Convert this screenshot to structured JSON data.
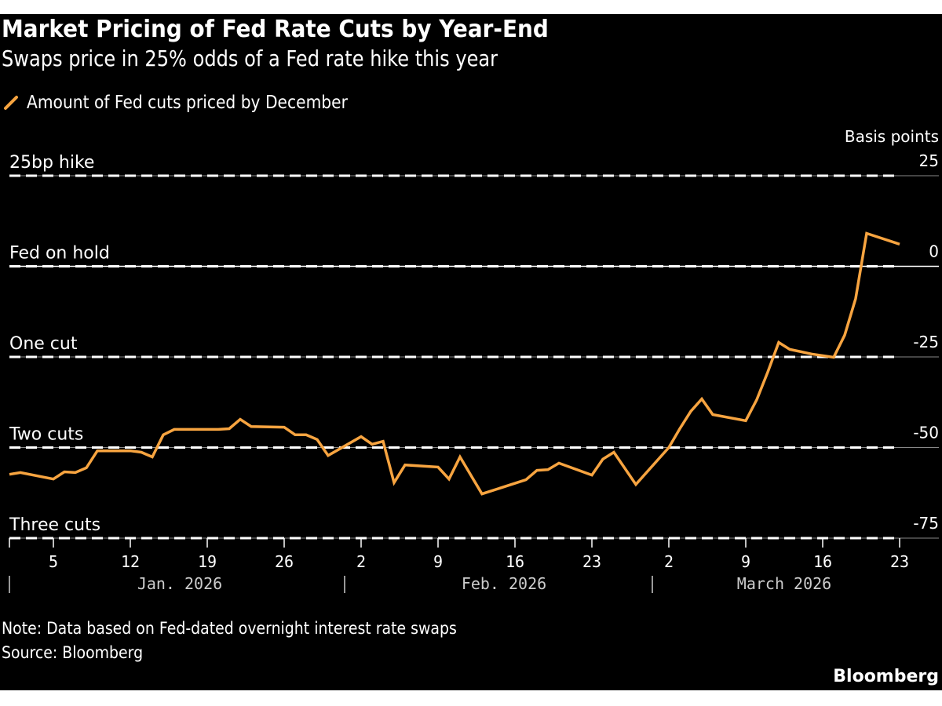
{
  "title": "Market Pricing of Fed Rate Cuts by Year-End",
  "subtitle": "Swaps price in 25% odds of a Fed rate hike this year",
  "legend": {
    "label": "Amount of Fed cuts priced by December",
    "icon": "slash-line-icon"
  },
  "note": "Note: Data based on Fed-dated overnight interest rate swaps",
  "source": "Source: Bloomberg",
  "brand": "Bloomberg",
  "colors": {
    "series": "#f7a440",
    "background": "#000000",
    "text": "#ffffff",
    "grid": "#888888",
    "zero_line": "#ffffff",
    "reference_dash": "#ffffff"
  },
  "chart_data": {
    "type": "line",
    "title": "Market Pricing of Fed Rate Cuts by Year-End",
    "subtitle": "Swaps price in 25% odds of a Fed rate hike this year",
    "xlabel": "",
    "ylabel": "Basis points",
    "ylim": [
      -75,
      25
    ],
    "yticks": [
      25,
      0,
      -25,
      -50,
      -75
    ],
    "ytick_labels": [
      "25",
      "0",
      "-25",
      "-50",
      "-75"
    ],
    "y_axis_position": "right",
    "grid": true,
    "legend_position": "top-left",
    "reference_lines": [
      {
        "value": 25,
        "label": "25bp hike"
      },
      {
        "value": 0,
        "label": "Fed on hold"
      },
      {
        "value": -25,
        "label": "One cut"
      },
      {
        "value": -50,
        "label": "Two cuts"
      },
      {
        "value": -75,
        "label": "Three cuts"
      }
    ],
    "xlim_days": [
      0,
      82
    ],
    "x_ticks": [
      {
        "day": 4,
        "label": "5"
      },
      {
        "day": 11,
        "label": "12"
      },
      {
        "day": 18,
        "label": "19"
      },
      {
        "day": 25,
        "label": "26"
      },
      {
        "day": 32,
        "label": "2"
      },
      {
        "day": 39,
        "label": "9"
      },
      {
        "day": 46,
        "label": "16"
      },
      {
        "day": 53,
        "label": "23"
      },
      {
        "day": 60,
        "label": "2"
      },
      {
        "day": 67,
        "label": "9"
      },
      {
        "day": 74,
        "label": "16"
      },
      {
        "day": 81,
        "label": "23"
      }
    ],
    "months": [
      {
        "start_day": 0,
        "label": "Jan. 2026"
      },
      {
        "start_day": 31,
        "label": "Feb. 2026"
      },
      {
        "start_day": 59,
        "label": "March 2026"
      }
    ],
    "series": [
      {
        "name": "Amount of Fed cuts priced by December",
        "points": [
          {
            "date": "2026-01-01",
            "day": 0,
            "value": -57.4
          },
          {
            "date": "2026-01-02",
            "day": 1,
            "value": -56.9
          },
          {
            "date": "2026-01-05",
            "day": 4,
            "value": -58.7
          },
          {
            "date": "2026-01-06",
            "day": 5,
            "value": -56.7
          },
          {
            "date": "2026-01-07",
            "day": 6,
            "value": -56.9
          },
          {
            "date": "2026-01-08",
            "day": 7,
            "value": -55.6
          },
          {
            "date": "2026-01-09",
            "day": 8,
            "value": -50.9
          },
          {
            "date": "2026-01-12",
            "day": 11,
            "value": -50.9
          },
          {
            "date": "2026-01-13",
            "day": 12,
            "value": -51.3
          },
          {
            "date": "2026-01-14",
            "day": 13,
            "value": -52.6
          },
          {
            "date": "2026-01-15",
            "day": 14,
            "value": -46.5
          },
          {
            "date": "2026-01-16",
            "day": 15,
            "value": -45.0
          },
          {
            "date": "2026-01-20",
            "day": 19,
            "value": -45.0
          },
          {
            "date": "2026-01-21",
            "day": 20,
            "value": -44.8
          },
          {
            "date": "2026-01-22",
            "day": 21,
            "value": -42.2
          },
          {
            "date": "2026-01-23",
            "day": 22,
            "value": -44.2
          },
          {
            "date": "2026-01-26",
            "day": 25,
            "value": -44.4
          },
          {
            "date": "2026-01-27",
            "day": 26,
            "value": -46.5
          },
          {
            "date": "2026-01-28",
            "day": 27,
            "value": -46.5
          },
          {
            "date": "2026-01-29",
            "day": 28,
            "value": -47.8
          },
          {
            "date": "2026-01-30",
            "day": 29,
            "value": -52.2
          },
          {
            "date": "2026-02-02",
            "day": 32,
            "value": -47.0
          },
          {
            "date": "2026-02-03",
            "day": 33,
            "value": -49.1
          },
          {
            "date": "2026-02-04",
            "day": 34,
            "value": -48.3
          },
          {
            "date": "2026-02-05",
            "day": 35,
            "value": -59.7
          },
          {
            "date": "2026-02-06",
            "day": 36,
            "value": -54.8
          },
          {
            "date": "2026-02-09",
            "day": 39,
            "value": -55.4
          },
          {
            "date": "2026-02-10",
            "day": 40,
            "value": -58.7
          },
          {
            "date": "2026-02-11",
            "day": 41,
            "value": -52.6
          },
          {
            "date": "2026-02-13",
            "day": 43,
            "value": -62.8
          },
          {
            "date": "2026-02-17",
            "day": 47,
            "value": -58.9
          },
          {
            "date": "2026-02-18",
            "day": 48,
            "value": -56.3
          },
          {
            "date": "2026-02-19",
            "day": 49,
            "value": -56.1
          },
          {
            "date": "2026-02-20",
            "day": 50,
            "value": -54.3
          },
          {
            "date": "2026-02-23",
            "day": 53,
            "value": -57.6
          },
          {
            "date": "2026-02-24",
            "day": 54,
            "value": -53.2
          },
          {
            "date": "2026-02-25",
            "day": 55,
            "value": -51.3
          },
          {
            "date": "2026-02-27",
            "day": 57,
            "value": -60.2
          },
          {
            "date": "2026-03-02",
            "day": 60,
            "value": -50.0
          },
          {
            "date": "2026-03-03",
            "day": 61,
            "value": -44.8
          },
          {
            "date": "2026-03-04",
            "day": 62,
            "value": -40.0
          },
          {
            "date": "2026-03-05",
            "day": 63,
            "value": -36.6
          },
          {
            "date": "2026-03-06",
            "day": 64,
            "value": -40.9
          },
          {
            "date": "2026-03-09",
            "day": 67,
            "value": -42.6
          },
          {
            "date": "2026-03-10",
            "day": 68,
            "value": -36.8
          },
          {
            "date": "2026-03-11",
            "day": 69,
            "value": -29.2
          },
          {
            "date": "2026-03-12",
            "day": 70,
            "value": -21.0
          },
          {
            "date": "2026-03-13",
            "day": 71,
            "value": -22.9
          },
          {
            "date": "2026-03-15",
            "day": 73,
            "value": -24.2
          },
          {
            "date": "2026-03-17",
            "day": 75,
            "value": -25.1
          },
          {
            "date": "2026-03-18",
            "day": 76,
            "value": -19.0
          },
          {
            "date": "2026-03-19",
            "day": 77,
            "value": -8.9
          },
          {
            "date": "2026-03-20",
            "day": 78,
            "value": 9.1
          },
          {
            "date": "2026-03-23",
            "day": 81,
            "value": 6.1
          }
        ]
      }
    ]
  }
}
